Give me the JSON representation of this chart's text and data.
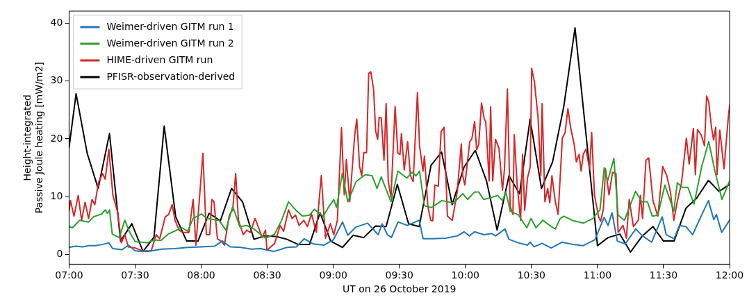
{
  "chart_data": {
    "type": "line",
    "xlabel": "UT on 26 October 2019",
    "ylabel": "Height-integrated\nPassive Joule heating [mW/m2]",
    "xlim": [
      7,
      12
    ],
    "xticks": [
      {
        "value": 7,
        "label": "07:00"
      },
      {
        "value": 7.5,
        "label": "07:30"
      },
      {
        "value": 8,
        "label": "08:00"
      },
      {
        "value": 8.5,
        "label": "08:30"
      },
      {
        "value": 9,
        "label": "09:00"
      },
      {
        "value": 9.5,
        "label": "09:30"
      },
      {
        "value": 10,
        "label": "10:00"
      },
      {
        "value": 10.5,
        "label": "10:30"
      },
      {
        "value": 11,
        "label": "11:00"
      },
      {
        "value": 11.5,
        "label": "11:30"
      },
      {
        "value": 12,
        "label": "12:00"
      }
    ],
    "ylim": [
      -1.7,
      42.1
    ],
    "yticks": [
      0,
      10,
      20,
      30,
      40
    ],
    "grid": false,
    "legend": "top left",
    "marker": "none",
    "line_style": "solid",
    "series": [
      {
        "name": "Weimer-driven GITM run 1",
        "color": "#1f77b4",
        "x": [
          7.0,
          7.05,
          7.1,
          7.15,
          7.2,
          7.25,
          7.3,
          7.33,
          7.4,
          7.45,
          7.5,
          7.55,
          7.6,
          7.7,
          7.8,
          7.9,
          8.0,
          8.1,
          8.16,
          8.22,
          8.3,
          8.38,
          8.45,
          8.55,
          8.65,
          8.72,
          8.78,
          8.85,
          8.93,
          9.0,
          9.07,
          9.11,
          9.17,
          9.26,
          9.34,
          9.37,
          9.41,
          9.44,
          9.49,
          9.56,
          9.65,
          9.68,
          9.75,
          9.85,
          9.94,
          9.99,
          10.03,
          10.07,
          10.14,
          10.2,
          10.23,
          10.3,
          10.33,
          10.4,
          10.47,
          10.49,
          10.52,
          10.58,
          10.65,
          10.73,
          10.82,
          10.89,
          10.98,
          11.05,
          11.08,
          11.11,
          11.15,
          11.21,
          11.29,
          11.34,
          11.41,
          11.49,
          11.52,
          11.58,
          11.62,
          11.67,
          11.72,
          11.77,
          11.84,
          11.88,
          11.9,
          11.94,
          12.0
        ],
        "values": [
          1.2,
          1.4,
          1.3,
          1.5,
          1.5,
          1.7,
          2.0,
          1.0,
          0.8,
          1.6,
          0.6,
          0.5,
          0.5,
          0.9,
          1.0,
          1.2,
          1.3,
          1.4,
          2.3,
          1.3,
          1.2,
          0.9,
          1.0,
          0.5,
          1.2,
          1.3,
          2.7,
          1.8,
          1.6,
          2.5,
          5.6,
          3.3,
          4.7,
          5.4,
          3.4,
          5.3,
          3.4,
          2.9,
          5.6,
          5.0,
          5.9,
          2.7,
          2.7,
          2.8,
          3.2,
          3.9,
          3.2,
          3.9,
          3.4,
          3.6,
          3.2,
          4.4,
          2.6,
          2.0,
          1.6,
          2.1,
          1.3,
          1.9,
          1.1,
          2.1,
          1.7,
          1.5,
          2.5,
          6.4,
          5.0,
          7.2,
          2.3,
          1.8,
          4.4,
          3.2,
          2.1,
          6.5,
          3.4,
          2.7,
          5.0,
          4.8,
          3.4,
          5.9,
          9.3,
          6.0,
          6.9,
          3.8,
          5.9
        ]
      },
      {
        "name": "Weimer-driven GITM run 2",
        "color": "#2ca02c",
        "x": [
          7.0,
          7.026,
          7.079,
          7.148,
          7.185,
          7.248,
          7.274,
          7.29,
          7.306,
          7.327,
          7.38,
          7.422,
          7.459,
          7.501,
          7.591,
          7.643,
          7.696,
          7.749,
          7.854,
          7.897,
          7.939,
          8.002,
          8.044,
          8.134,
          8.187,
          8.239,
          8.292,
          8.345,
          8.398,
          8.487,
          8.556,
          8.609,
          8.661,
          8.714,
          8.767,
          8.82,
          8.857,
          8.925,
          8.962,
          9.004,
          9.025,
          9.068,
          9.11,
          9.173,
          9.242,
          9.294,
          9.331,
          9.363,
          9.437,
          9.489,
          9.558,
          9.595,
          9.627,
          9.653,
          9.69,
          9.743,
          9.822,
          9.911,
          9.98,
          10.017,
          10.07,
          10.101,
          10.138,
          10.191,
          10.244,
          10.281,
          10.307,
          10.339,
          10.402,
          10.465,
          10.497,
          10.534,
          10.586,
          10.65,
          10.681,
          10.718,
          10.745,
          10.808,
          10.892,
          10.966,
          10.998,
          11.019,
          11.051,
          11.077,
          11.124,
          11.156,
          11.204,
          11.288,
          11.335,
          11.378,
          11.415,
          11.457,
          11.51,
          11.578,
          11.604,
          11.641,
          11.684,
          11.731,
          11.789,
          11.842,
          11.889,
          11.942,
          12.0
        ],
        "values": [
          4.8,
          4.6,
          5.9,
          5.6,
          6.5,
          7.0,
          7.7,
          7.1,
          7.7,
          3.5,
          2.9,
          5.9,
          3.8,
          2.2,
          2.0,
          2.5,
          2.4,
          3.5,
          4.6,
          4.0,
          6.2,
          7.0,
          6.2,
          5.9,
          4.2,
          8.3,
          4.8,
          5.0,
          4.4,
          2.8,
          3.5,
          5.9,
          9.1,
          7.7,
          6.6,
          6.8,
          7.8,
          6.6,
          8.1,
          9.5,
          8.1,
          14.0,
          9.1,
          12.6,
          13.8,
          13.6,
          11.4,
          13.4,
          9.1,
          14.4,
          13.2,
          14.2,
          13.6,
          14.4,
          8.4,
          8.1,
          9.3,
          8.9,
          10.5,
          9.5,
          10.8,
          10.8,
          9.5,
          9.8,
          10.2,
          9.3,
          10.8,
          7.5,
          6.8,
          4.6,
          6.2,
          4.6,
          5.9,
          4.8,
          4.4,
          6.2,
          6.6,
          5.9,
          5.4,
          6.2,
          7.2,
          7.7,
          15.0,
          12.7,
          16.6,
          6.8,
          5.9,
          10.9,
          9.1,
          9.1,
          6.6,
          6.8,
          12.0,
          7.5,
          12.4,
          11.6,
          11.6,
          8.7,
          15.2,
          19.5,
          14.4,
          9.5,
          12.7
        ]
      },
      {
        "name": "HIME-driven GITM run",
        "color": "#d62728",
        "x": [
          7.0,
          7.011,
          7.037,
          7.069,
          7.095,
          7.121,
          7.148,
          7.174,
          7.195,
          7.222,
          7.253,
          7.274,
          7.301,
          7.332,
          7.369,
          7.396,
          7.422,
          7.448,
          7.501,
          7.554,
          7.622,
          7.659,
          7.686,
          7.728,
          7.754,
          7.781,
          7.802,
          7.833,
          7.86,
          7.907,
          7.939,
          7.96,
          8.013,
          8.039,
          8.065,
          8.081,
          8.097,
          8.123,
          8.15,
          8.176,
          8.213,
          8.239,
          8.261,
          8.282,
          8.319,
          8.345,
          8.371,
          8.408,
          8.435,
          8.461,
          8.487,
          8.498,
          8.556,
          8.598,
          8.624,
          8.661,
          8.688,
          8.714,
          8.741,
          8.777,
          8.804,
          8.835,
          8.872,
          8.909,
          8.941,
          8.978,
          9.004,
          9.031,
          9.062,
          9.083,
          9.099,
          9.125,
          9.162,
          9.178,
          9.199,
          9.215,
          9.231,
          9.252,
          9.268,
          9.284,
          9.305,
          9.321,
          9.336,
          9.347,
          9.363,
          9.384,
          9.4,
          9.416,
          9.437,
          9.468,
          9.489,
          9.505,
          9.516,
          9.537,
          9.563,
          9.584,
          9.605,
          9.637,
          9.653,
          9.679,
          9.69,
          9.716,
          9.737,
          9.753,
          9.769,
          9.795,
          9.816,
          9.838,
          9.864,
          9.901,
          9.938,
          9.969,
          9.98,
          9.996,
          10.033,
          10.049,
          10.07,
          10.085,
          10.101,
          10.122,
          10.143,
          10.154,
          10.18,
          10.191,
          10.207,
          10.228,
          10.254,
          10.281,
          10.296,
          10.318,
          10.339,
          10.36,
          10.37,
          10.391,
          10.418,
          10.433,
          10.449,
          10.47,
          10.491,
          10.502,
          10.523,
          10.55,
          10.571,
          10.581,
          10.602,
          10.623,
          10.639,
          10.655,
          10.681,
          10.702,
          10.734,
          10.755,
          10.776,
          10.797,
          10.824,
          10.84,
          10.861,
          10.876,
          10.892,
          10.913,
          10.94,
          10.956,
          10.977,
          11.008,
          11.024,
          11.045,
          11.061,
          11.087,
          11.114,
          11.14,
          11.156,
          11.193,
          11.219,
          11.24,
          11.272,
          11.309,
          11.325,
          11.341,
          11.367,
          11.388,
          11.42,
          11.457,
          11.494,
          11.525,
          11.552,
          11.578,
          11.604,
          11.636,
          11.673,
          11.694,
          11.726,
          11.741,
          11.757,
          11.784,
          11.81,
          11.826,
          11.842,
          11.863,
          11.879,
          11.895,
          11.905,
          11.926,
          11.958,
          11.989,
          12.0
        ],
        "values": [
          7.5,
          9.3,
          6.6,
          10.2,
          5.9,
          9.0,
          6.2,
          9.5,
          8.6,
          12.4,
          14.0,
          13.0,
          18.2,
          10.2,
          7.2,
          2.0,
          3.4,
          1.3,
          1.1,
          0.6,
          0.6,
          3.4,
          2.7,
          6.5,
          6.9,
          8.6,
          5.9,
          4.2,
          3.8,
          3.8,
          9.5,
          1.6,
          17.5,
          3.4,
          3.4,
          9.5,
          9.1,
          2.7,
          2.3,
          1.6,
          6.8,
          7.7,
          14.0,
          5.9,
          3.4,
          4.2,
          3.8,
          6.2,
          4.6,
          2.9,
          4.2,
          0.7,
          1.9,
          5.0,
          4.0,
          7.7,
          6.2,
          6.8,
          5.0,
          5.9,
          4.8,
          7.0,
          3.8,
          13.6,
          2.8,
          5.3,
          3.4,
          5.9,
          21.9,
          10.3,
          16.4,
          9.1,
          20.7,
          23.4,
          15.2,
          13.6,
          17.6,
          17.6,
          31.3,
          31.6,
          28.6,
          21.3,
          19.9,
          23.7,
          23.6,
          16.3,
          26.1,
          12.7,
          9.9,
          25.6,
          17.5,
          17.3,
          20.9,
          14.6,
          19.5,
          13.6,
          12.6,
          28.0,
          18.8,
          14.4,
          17.0,
          8.3,
          5.9,
          5.8,
          12.0,
          11.8,
          21.2,
          22.0,
          6.6,
          5.9,
          10.8,
          19.1,
          13.6,
          12.0,
          19.5,
          20.0,
          23.0,
          18.1,
          19.0,
          26.2,
          23.4,
          23.0,
          12.7,
          25.5,
          12.7,
          19.9,
          18.4,
          11.1,
          14.8,
          28.6,
          8.3,
          6.9,
          20.7,
          12.3,
          5.9,
          17.3,
          7.6,
          13.2,
          15.2,
          32.2,
          29.8,
          23.7,
          13.6,
          26.1,
          9.1,
          11.4,
          8.9,
          13.6,
          9.1,
          6.9,
          20.1,
          21.1,
          25.2,
          21.9,
          19.0,
          16.0,
          17.3,
          14.4,
          17.3,
          18.2,
          14.8,
          21.1,
          10.3,
          6.5,
          5.7,
          7.9,
          14.8,
          10.3,
          14.2,
          14.0,
          3.8,
          5.0,
          2.8,
          9.5,
          4.8,
          5.9,
          10.2,
          6.2,
          16.3,
          16.7,
          9.3,
          6.6,
          15.2,
          13.6,
          10.8,
          5.9,
          9.1,
          12.4,
          20.1,
          15.6,
          21.8,
          13.8,
          21.6,
          20.7,
          18.8,
          27.4,
          26.4,
          22.0,
          19.8,
          22.0,
          13.8,
          21.5,
          14.8,
          23.4,
          25.8
        ]
      },
      {
        "name": "PFISR-observation-derived",
        "color": "#000000",
        "x": [
          7.0,
          7.053,
          7.137,
          7.22,
          7.306,
          7.39,
          7.475,
          7.56,
          7.643,
          7.72,
          7.807,
          7.89,
          7.976,
          8.06,
          8.145,
          8.23,
          8.313,
          8.4,
          8.48,
          8.566,
          8.65,
          8.735,
          8.82,
          8.9,
          8.98,
          9.07,
          9.15,
          9.23,
          9.32,
          9.4,
          9.485,
          9.57,
          9.65,
          9.74,
          9.82,
          9.9,
          9.99,
          10.075,
          10.16,
          10.24,
          10.33,
          10.41,
          10.49,
          10.576,
          10.66,
          10.745,
          10.83,
          11.0,
          11.08,
          11.17,
          11.25,
          11.34,
          11.42,
          11.5,
          11.58,
          11.67,
          11.75,
          11.84,
          11.92,
          12.0
        ],
        "values": [
          18.5,
          27.8,
          17.5,
          11.4,
          20.9,
          2.3,
          5.3,
          0.5,
          3.0,
          22.2,
          6.5,
          2.3,
          2.3,
          7.1,
          5.8,
          11.4,
          9.1,
          2.6,
          3.2,
          3.1,
          2.6,
          1.7,
          1.7,
          7.2,
          2.3,
          1.2,
          3.3,
          2.9,
          4.9,
          4.8,
          12.1,
          5.3,
          4.8,
          15.4,
          17.7,
          8.6,
          15.1,
          18.0,
          12.7,
          4.2,
          13.6,
          10.5,
          23.4,
          11.4,
          16.0,
          25.6,
          39.2,
          1.5,
          2.9,
          3.5,
          0.4,
          3.2,
          4.8,
          2.3,
          2.3,
          8.0,
          9.7,
          12.8,
          10.9,
          12.1
        ]
      }
    ]
  }
}
